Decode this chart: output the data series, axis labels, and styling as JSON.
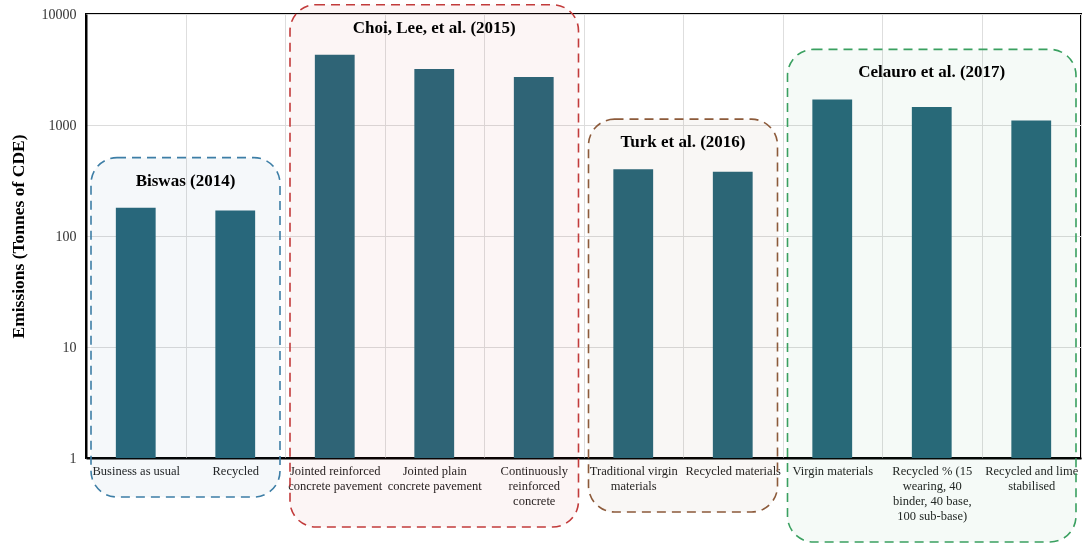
{
  "chart_data": {
    "type": "bar",
    "ylabel": "Emissions (Tonnes of CDE)",
    "categories": [
      "Business as usual",
      "Recycled",
      "Jointed reinforced concrete pavement",
      "Jointed plain concrete pavement",
      "Continuously reinforced concrete",
      "Traditional virgin materials",
      "Recycled materials",
      "Virgin materials",
      "Recycled % (15 wearing, 40 binder, 40 base, 100 sub-base)",
      "Recycled and lime stabilised"
    ],
    "values": [
      180,
      170,
      4300,
      3200,
      2700,
      400,
      380,
      1700,
      1450,
      1100
    ],
    "color": "#28677a",
    "log": true,
    "ylim": [
      1,
      10000
    ],
    "yticks": [
      1,
      10,
      100,
      1000,
      10000
    ],
    "grid": true,
    "bands": [
      {
        "axis": "x",
        "from": "Business as usual",
        "to": "Recycled",
        "label": "Biswas (2014)",
        "color": "#3d7ea6"
      },
      {
        "axis": "x",
        "from": "Jointed reinforced concrete pavement",
        "to": "Continuously reinforced concrete",
        "label": "Choi, Lee, et al. (2015)",
        "color": "#c23b3b"
      },
      {
        "axis": "x",
        "from": "Traditional virgin materials",
        "to": "Recycled materials",
        "label": "Turk et al. (2016)",
        "color": "#8c5a3a"
      },
      {
        "axis": "x",
        "from": "Virgin materials",
        "to": "Recycled and lime stabilised",
        "label": "Celauro et al. (2017)",
        "color": "#3aa060"
      }
    ]
  }
}
